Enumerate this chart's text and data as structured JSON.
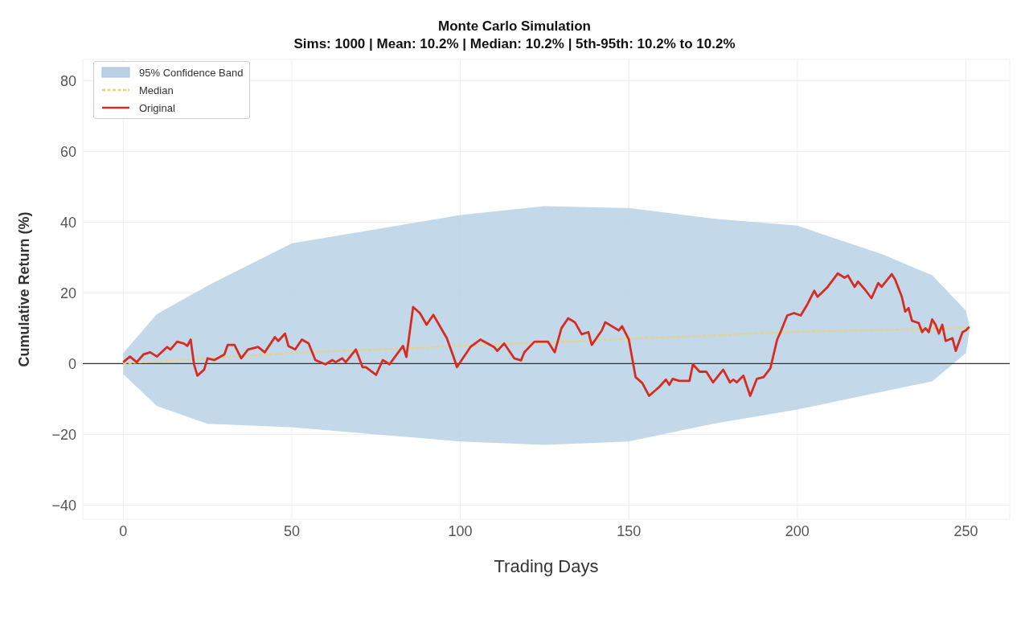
{
  "chart_data": {
    "type": "line",
    "title": "Monte Carlo Simulation",
    "subtitle": "Sims: 1000 | Mean: 10.2% | Median: 10.2% | 5th-95th: 10.2% to 10.2%",
    "xlabel": "Trading Days",
    "ylabel": "Cumulative Return (%)",
    "xlim": [
      -12,
      263
    ],
    "xticks": [
      0,
      50,
      100,
      150,
      200,
      250
    ],
    "ylim": [
      -44,
      86
    ],
    "yticks": [
      {
        "value": -40,
        "label": "−40"
      },
      {
        "value": -20,
        "label": "−20"
      },
      0,
      20,
      40,
      60,
      80
    ],
    "grid": true,
    "legend": "top left",
    "ref_lines": [
      {
        "axis": "y",
        "value": 0,
        "color": "#333333"
      }
    ],
    "series": [
      {
        "name": "95% Confidence Band",
        "type": "area",
        "color": "#b9d1e5",
        "x": [
          0,
          10,
          25,
          50,
          75,
          100,
          125,
          150,
          175,
          200,
          225,
          240,
          250,
          251
        ],
        "values": [
          null,
          null,
          null,
          null,
          null,
          null,
          null,
          null,
          null,
          null,
          null,
          null,
          null,
          null
        ],
        "lower": [
          -3,
          -12,
          -17,
          -18,
          -20,
          -22,
          -23,
          -22,
          -17,
          -13,
          -8,
          -5,
          3,
          9
        ],
        "upper": [
          3,
          14,
          22,
          34,
          38,
          42,
          44.5,
          44,
          41,
          39,
          31,
          25,
          15,
          11
        ]
      },
      {
        "name": "Median",
        "color": "#f2d36b",
        "line_style": "dashed",
        "x": [
          0,
          25,
          50,
          75,
          100,
          125,
          150,
          175,
          200,
          225,
          251
        ],
        "values": [
          0,
          1.5,
          3,
          4,
          5,
          6,
          7,
          8,
          9,
          9.5,
          10.2
        ]
      },
      {
        "name": "Original",
        "color": "#d62c23",
        "line_style": "solid",
        "x": [
          0,
          2,
          4,
          6,
          8,
          10,
          13,
          14,
          16,
          18,
          19,
          20,
          21,
          22,
          24,
          25,
          27,
          30,
          31,
          33,
          35,
          37,
          40,
          42,
          45,
          46,
          48,
          49,
          51,
          53,
          55,
          57,
          60,
          62,
          63,
          65,
          66,
          69,
          71,
          72,
          75,
          77,
          79,
          83,
          84,
          86,
          88,
          90,
          92,
          96,
          98,
          99,
          103,
          106,
          110,
          111,
          113,
          116,
          118,
          119,
          122,
          126,
          128,
          130,
          132,
          134,
          136,
          138,
          139,
          142,
          143,
          147,
          148,
          150,
          152,
          154,
          156,
          159,
          161,
          162,
          163,
          165,
          168,
          169,
          171,
          173,
          175,
          178,
          180,
          181,
          182,
          184,
          186,
          188,
          190,
          192,
          194,
          195,
          197,
          199,
          201,
          203,
          205,
          206,
          209,
          212,
          214,
          215,
          217,
          218,
          220,
          222,
          224,
          225,
          228,
          229,
          231,
          232,
          233,
          234,
          236,
          237,
          238,
          239,
          240,
          241,
          242,
          243,
          244,
          246,
          247,
          249,
          250,
          251
        ],
        "values": [
          0.4,
          2,
          0.4,
          2.6,
          3.2,
          2,
          4.7,
          4,
          6.2,
          5.7,
          5,
          6.8,
          -0.2,
          -3.4,
          -1.7,
          1.5,
          1,
          2.6,
          5.3,
          5.3,
          1.5,
          4,
          4.7,
          3.2,
          7.5,
          6.4,
          8.5,
          5,
          4,
          6.8,
          5.7,
          1,
          -0.2,
          1,
          0.4,
          1.5,
          0.4,
          4,
          -1,
          -1,
          -3.2,
          1,
          -0.2,
          5,
          1.9,
          16,
          14.3,
          11,
          13.8,
          7.2,
          1.9,
          -1,
          4.7,
          6.8,
          4.7,
          3.6,
          5.7,
          1.5,
          0.9,
          3.2,
          6.2,
          6.2,
          3.2,
          10,
          12.8,
          11.7,
          8.3,
          8.9,
          5.3,
          9.4,
          11.7,
          9.4,
          10.6,
          6.8,
          -3.8,
          -5.5,
          -9.1,
          -6.6,
          -4.5,
          -6,
          -4.3,
          -4.9,
          -4.9,
          -0.2,
          -2.3,
          -2.3,
          -5.3,
          -1.7,
          -5.3,
          -4.5,
          -5.3,
          -3.4,
          -9.1,
          -4.3,
          -3.8,
          -1.3,
          6.8,
          8.9,
          13.6,
          14.3,
          13.6,
          16.8,
          20.6,
          18.9,
          21.7,
          25.5,
          24.3,
          24.9,
          21.7,
          23.2,
          21,
          18.5,
          22.8,
          21.7,
          25.3,
          23.8,
          18.9,
          14.7,
          15.7,
          12.1,
          11.5,
          8.9,
          10,
          8.9,
          12.5,
          11,
          8.5,
          11,
          6.4,
          7.2,
          3.6,
          8.9,
          9.4,
          10.4
        ]
      }
    ]
  }
}
